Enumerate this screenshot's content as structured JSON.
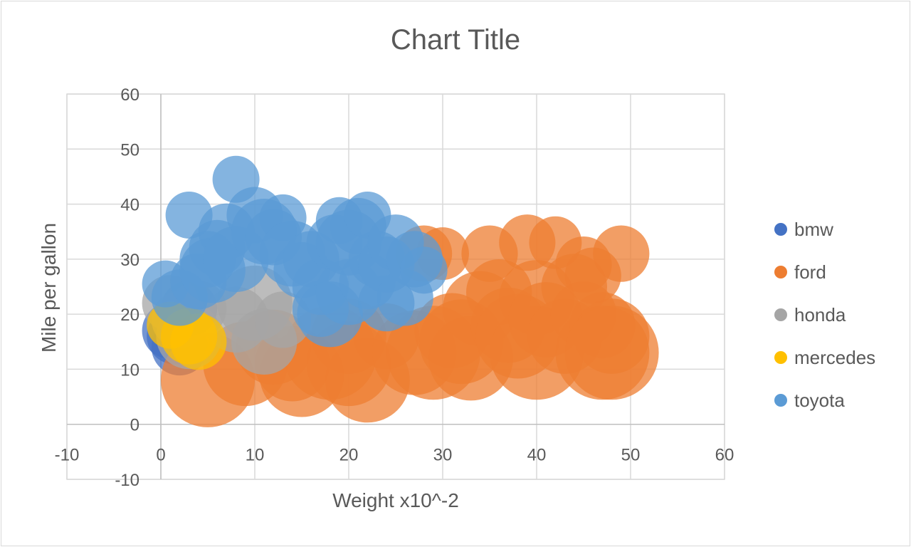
{
  "chart_data": {
    "type": "bubble",
    "title": "Chart Title",
    "xlabel": "Weight x10^-2",
    "ylabel": "Mile per gallon",
    "xlim": [
      -10,
      60
    ],
    "ylim": [
      -10,
      60
    ],
    "xticks": [
      -10,
      0,
      10,
      20,
      30,
      40,
      50,
      60
    ],
    "yticks": [
      -10,
      0,
      10,
      20,
      30,
      40,
      50,
      60
    ],
    "grid": true,
    "legend_position": "right",
    "series": [
      {
        "name": "bmw",
        "color": "#4472c4",
        "points": [
          [
            1,
            17,
            3
          ],
          [
            2,
            14,
            3
          ],
          [
            2,
            19,
            2.5
          ],
          [
            3,
            21,
            3
          ],
          [
            1.5,
            16,
            3
          ]
        ]
      },
      {
        "name": "ford",
        "color": "#ed7d31",
        "points": [
          [
            5,
            8,
            5
          ],
          [
            9,
            11,
            4.5
          ],
          [
            12,
            14,
            4
          ],
          [
            14,
            11,
            4
          ],
          [
            15,
            9,
            4.5
          ],
          [
            18,
            13,
            5
          ],
          [
            20,
            11,
            4.5
          ],
          [
            22,
            8,
            4.5
          ],
          [
            20,
            16,
            4
          ],
          [
            24,
            16,
            3.5
          ],
          [
            27,
            13,
            4.5
          ],
          [
            28,
            31,
            3
          ],
          [
            29,
            13,
            5
          ],
          [
            30,
            31,
            2.8
          ],
          [
            31,
            17,
            4
          ],
          [
            32,
            15,
            4.5
          ],
          [
            33,
            12,
            4.5
          ],
          [
            34,
            21,
            4
          ],
          [
            35,
            31,
            3
          ],
          [
            36,
            24,
            3.5
          ],
          [
            37,
            18,
            4
          ],
          [
            38,
            16,
            4.5
          ],
          [
            39,
            33,
            3
          ],
          [
            40,
            13,
            5
          ],
          [
            40,
            23,
            4
          ],
          [
            41,
            19,
            4
          ],
          [
            42,
            33,
            2.8
          ],
          [
            43,
            16,
            4
          ],
          [
            44,
            25,
            3.5
          ],
          [
            45,
            29,
            3
          ],
          [
            45,
            20,
            3.5
          ],
          [
            46,
            27,
            3
          ],
          [
            47,
            13,
            5
          ],
          [
            47,
            18,
            3.5
          ],
          [
            48,
            16,
            4
          ],
          [
            48,
            13,
            5
          ],
          [
            49,
            31,
            3
          ]
        ]
      },
      {
        "name": "honda",
        "color": "#a5a5a5",
        "points": [
          [
            1,
            22,
            3
          ],
          [
            2,
            19,
            3
          ],
          [
            3,
            16,
            3.5
          ],
          [
            4,
            21,
            3
          ],
          [
            8,
            19,
            3.5
          ],
          [
            10,
            22,
            4
          ],
          [
            11,
            15,
            3.5
          ],
          [
            13,
            19,
            3
          ]
        ]
      },
      {
        "name": "mercedes",
        "color": "#ffc000",
        "points": [
          [
            1,
            18,
            2.5
          ],
          [
            3,
            16,
            3
          ],
          [
            4,
            15,
            3
          ]
        ]
      },
      {
        "name": "toyota",
        "color": "#5b9bd5",
        "points": [
          [
            0.5,
            25.5,
            2.5
          ],
          [
            2,
            23,
            3
          ],
          [
            3,
            38,
            2.5
          ],
          [
            4,
            26,
            3
          ],
          [
            5,
            30,
            3
          ],
          [
            5.5,
            28,
            3.5
          ],
          [
            6,
            32,
            3
          ],
          [
            7,
            35,
            3
          ],
          [
            8,
            44.5,
            2.5
          ],
          [
            8,
            30,
            3.5
          ],
          [
            10,
            38,
            3
          ],
          [
            11,
            35,
            3.5
          ],
          [
            12,
            34,
            3
          ],
          [
            13,
            37.5,
            2.5
          ],
          [
            14,
            31,
            3.5
          ],
          [
            15,
            28,
            3
          ],
          [
            16,
            30,
            3
          ],
          [
            17,
            25,
            3
          ],
          [
            17,
            21,
            3
          ],
          [
            18,
            20,
            3.5
          ],
          [
            18.5,
            33,
            3
          ],
          [
            19,
            37,
            2.5
          ],
          [
            20,
            24,
            3.5
          ],
          [
            20,
            33,
            3.5
          ],
          [
            21,
            36,
            3
          ],
          [
            22,
            38,
            2.5
          ],
          [
            22,
            26,
            3
          ],
          [
            23,
            30,
            3
          ],
          [
            24,
            22,
            3
          ],
          [
            24,
            29,
            3
          ],
          [
            25,
            33,
            3
          ],
          [
            26,
            23,
            3
          ],
          [
            27,
            30,
            3
          ],
          [
            28,
            28,
            2.5
          ]
        ]
      }
    ]
  }
}
